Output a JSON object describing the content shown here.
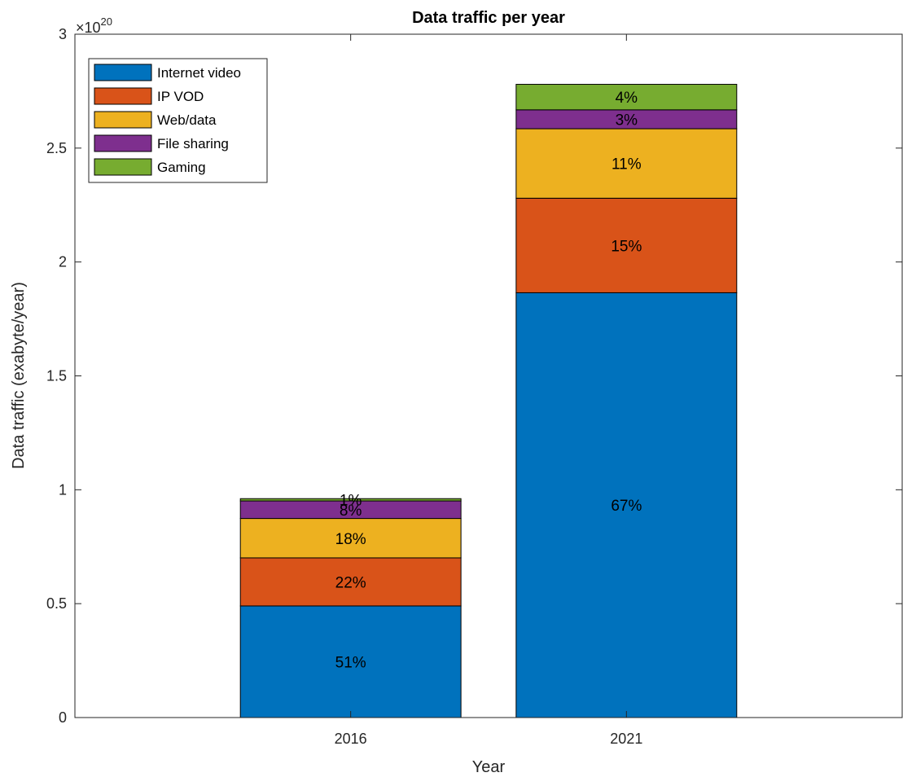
{
  "chart_data": {
    "type": "bar",
    "stacked": true,
    "title": "Data traffic per year",
    "xlabel": "Year",
    "ylabel": "Data traffic (exabyte/year)",
    "categories": [
      "2016",
      "2021"
    ],
    "ylim": [
      0,
      3
    ],
    "y_exponent_label": "×10",
    "y_exponent": "20",
    "yticks": [
      "0",
      "0.5",
      "1",
      "1.5",
      "2",
      "2.5",
      "3"
    ],
    "yticks_values": [
      0,
      0.5,
      1,
      1.5,
      2,
      2.5,
      3
    ],
    "grid": false,
    "legend_position": "top-left",
    "series": [
      {
        "name": "Internet video",
        "color": "#0072BD",
        "values": [
          0.49,
          1.865
        ],
        "labels": [
          "51%",
          "67%"
        ]
      },
      {
        "name": "IP VOD",
        "color": "#D95319",
        "values": [
          0.211,
          0.415
        ],
        "labels": [
          "22%",
          "15%"
        ]
      },
      {
        "name": "Web/data",
        "color": "#EDB120",
        "values": [
          0.173,
          0.305
        ],
        "labels": [
          "18%",
          "11%"
        ]
      },
      {
        "name": "File sharing",
        "color": "#7E2F8E",
        "values": [
          0.077,
          0.083
        ],
        "labels": [
          "8%",
          "3%"
        ]
      },
      {
        "name": "Gaming",
        "color": "#77AC30",
        "values": [
          0.01,
          0.112
        ],
        "labels": [
          "1%",
          "4%"
        ]
      }
    ]
  }
}
